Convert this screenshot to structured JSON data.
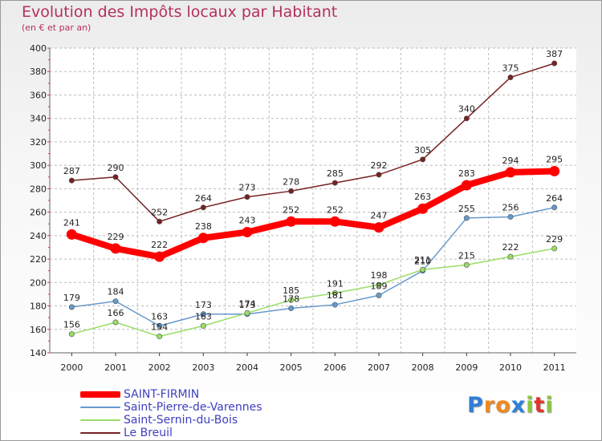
{
  "header": {
    "title": "Evolution des Impôts locaux par Habitant",
    "subtitle": "(en € et par an)"
  },
  "chart_data": {
    "type": "line",
    "title": "Evolution des Impôts locaux par Habitant",
    "subtitle": "(en € et par an)",
    "xlabel": "",
    "ylabel": "",
    "x": [
      "2000",
      "2001",
      "2002",
      "2003",
      "2004",
      "2005",
      "2006",
      "2007",
      "2008",
      "2009",
      "2010",
      "2011"
    ],
    "ylim": [
      140,
      400
    ],
    "yticks": [
      140,
      160,
      180,
      200,
      220,
      240,
      260,
      280,
      300,
      320,
      340,
      360,
      380,
      400
    ],
    "grid": "horizontal dashed",
    "legend_position": "bottom-left",
    "series": [
      {
        "name": "SAINT-FIRMIN",
        "color": "#ff0000",
        "values": [
          241,
          229,
          222,
          238,
          243,
          252,
          252,
          247,
          263,
          283,
          294,
          295
        ]
      },
      {
        "name": "Saint-Pierre-de-Varennes",
        "color": "#6699cc",
        "values": [
          179,
          184,
          163,
          173,
          173,
          178,
          181,
          189,
          210,
          255,
          256,
          264
        ]
      },
      {
        "name": "Saint-Sernin-du-Bois",
        "color": "#99dd66",
        "values": [
          156,
          166,
          154,
          163,
          174,
          185,
          191,
          198,
          211,
          215,
          222,
          229
        ]
      },
      {
        "name": "Le Breuil",
        "color": "#772222",
        "values": [
          287,
          290,
          252,
          264,
          273,
          278,
          285,
          292,
          305,
          340,
          375,
          387
        ]
      }
    ]
  },
  "logo": {
    "letters": [
      "P",
      "r",
      "o",
      "x",
      "i",
      "t",
      "i"
    ],
    "colors": [
      "#2f7fd6",
      "#f08a1c",
      "#f08a1c",
      "#2f7fd6",
      "#8cc63f",
      "#e0362c",
      "#8cc63f"
    ]
  }
}
